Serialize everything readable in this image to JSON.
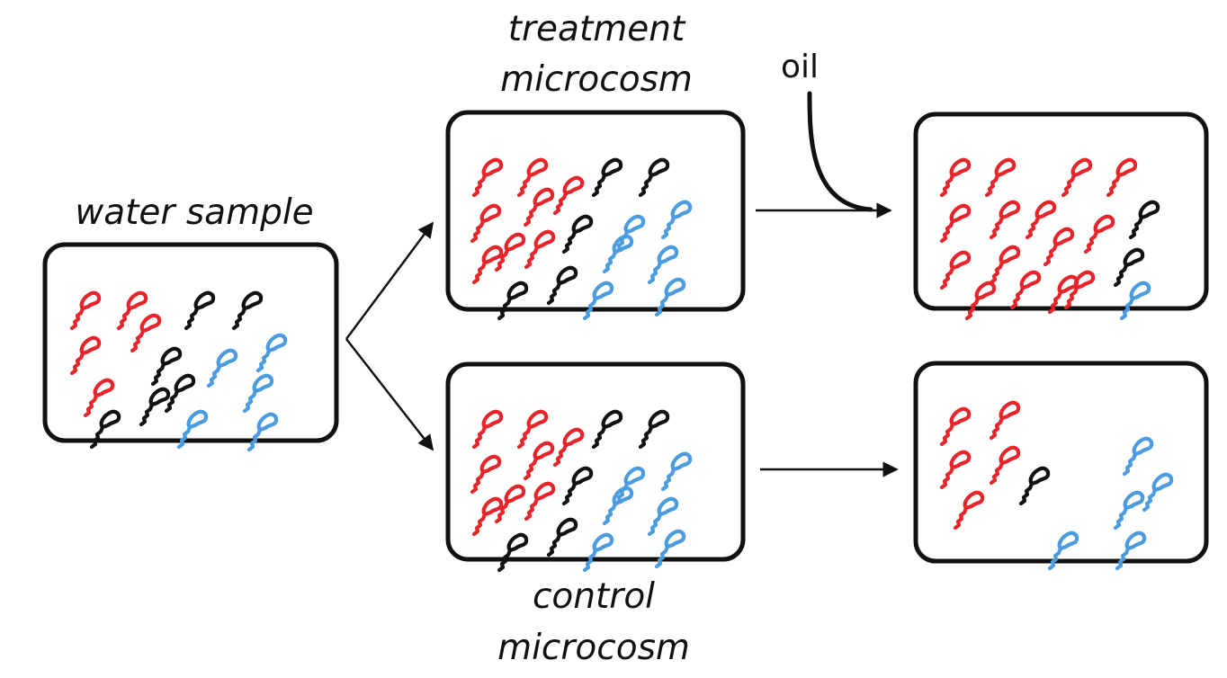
{
  "diagram": {
    "labels": {
      "water_sample": "water sample",
      "treatment_line1": "treatment",
      "treatment_line2": "microcosm",
      "control_line1": "control",
      "control_line2": "microcosm",
      "oil": "oil"
    },
    "colors": {
      "red": "#e8242b",
      "black": "#111111",
      "blue": "#4a9be0",
      "outline": "#111111",
      "background": "#ffffff"
    },
    "panels": [
      {
        "id": "water-sample",
        "counts": {
          "red": 5,
          "black": 6,
          "blue": 5
        }
      },
      {
        "id": "treatment-before",
        "counts": {
          "red": 8,
          "black": 6,
          "blue": 6
        }
      },
      {
        "id": "treatment-after-oil",
        "counts": {
          "red": 15,
          "black": 2,
          "blue": 1
        }
      },
      {
        "id": "control-before",
        "counts": {
          "red": 8,
          "black": 6,
          "blue": 6
        }
      },
      {
        "id": "control-after",
        "counts": {
          "red": 5,
          "black": 1,
          "blue": 5
        }
      }
    ]
  }
}
